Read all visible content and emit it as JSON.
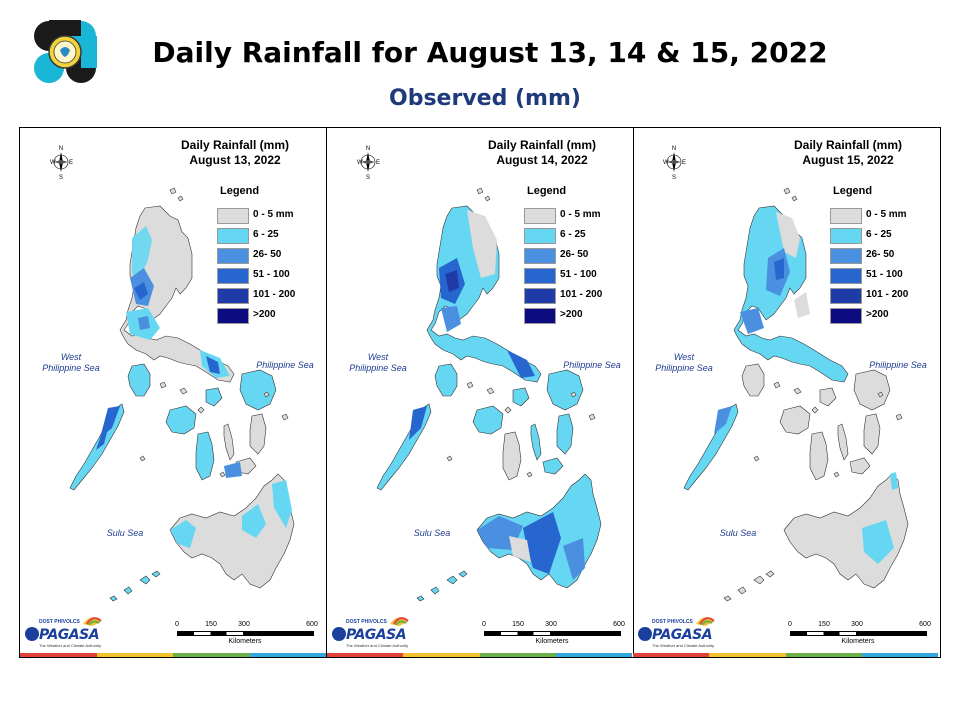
{
  "header": {
    "title": "Daily Rainfall for August 13, 14 & 15, 2022",
    "subtitle": "Observed (mm)"
  },
  "legend": {
    "title": "Legend",
    "items": [
      {
        "label": "0 - 5 mm",
        "color": "#dcdcdc"
      },
      {
        "label": "6 - 25",
        "color": "#66d7f2"
      },
      {
        "label": "26- 50",
        "color": "#4a8fe0"
      },
      {
        "label": "51 - 100",
        "color": "#2766cf"
      },
      {
        "label": "101 - 200",
        "color": "#1f3ba8"
      },
      {
        "label": ">200",
        "color": "#0c0c80"
      }
    ]
  },
  "panels": [
    {
      "title": "Daily Rainfall (mm)",
      "date": "August 13, 2022"
    },
    {
      "title": "Daily Rainfall (mm)",
      "date": "August 14, 2022"
    },
    {
      "title": "Daily Rainfall (mm)",
      "date": "August 15, 2022"
    }
  ],
  "seas": {
    "west": "West\nPhilippine Sea",
    "east": "Philippine Sea",
    "sulu": "Sulu Sea"
  },
  "compass": {
    "n": "N",
    "s": "S",
    "e": "E",
    "w": "W"
  },
  "scale": {
    "ticks": [
      "0",
      "150",
      "300",
      "600"
    ],
    "unit": "Kilometers"
  },
  "branding": {
    "pagasa": "PAGASA",
    "dost": "DOST  PHIVOLCS",
    "tagline": "The Weather and Climate Authority"
  },
  "footer_colors": [
    "#e0433a",
    "#f2c12e",
    "#6db04a",
    "#35a7de"
  ]
}
